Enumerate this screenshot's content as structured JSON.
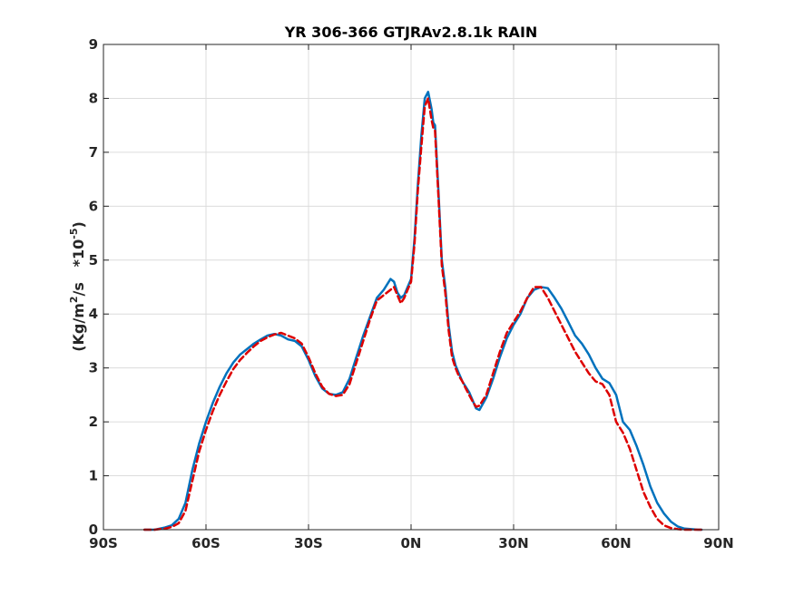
{
  "chart_data": {
    "type": "line",
    "title": "YR 306-366 GTJRAv2.8.1k RAIN",
    "xlabel": "",
    "ylabel": {
      "main": "(Kg/m",
      "sup1": "2",
      "mid": "/s   *10",
      "sup2": "-5",
      "end": ")"
    },
    "xlim": [
      -90,
      90
    ],
    "ylim": [
      0,
      9
    ],
    "grid": true,
    "legend": "none",
    "x_ticks": [
      {
        "value": -90,
        "label": "90S"
      },
      {
        "value": -60,
        "label": "60S"
      },
      {
        "value": -30,
        "label": "30S"
      },
      {
        "value": 0,
        "label": "0N"
      },
      {
        "value": 30,
        "label": "30N"
      },
      {
        "value": 60,
        "label": "60N"
      },
      {
        "value": 90,
        "label": "90N"
      }
    ],
    "y_ticks": [
      {
        "value": 0,
        "label": "0"
      },
      {
        "value": 1,
        "label": "1"
      },
      {
        "value": 2,
        "label": "2"
      },
      {
        "value": 3,
        "label": "3"
      },
      {
        "value": 4,
        "label": "4"
      },
      {
        "value": 5,
        "label": "5"
      },
      {
        "value": 6,
        "label": "6"
      },
      {
        "value": 7,
        "label": "7"
      },
      {
        "value": 8,
        "label": "8"
      },
      {
        "value": 9,
        "label": "9"
      }
    ],
    "series": [
      {
        "color": "#0072BD",
        "style": "solid",
        "x": [
          -78,
          -75,
          -72,
          -70,
          -68,
          -66,
          -64,
          -62,
          -60,
          -58,
          -56,
          -54,
          -52,
          -50,
          -48,
          -46,
          -44,
          -42,
          -40,
          -38,
          -36,
          -34,
          -32,
          -30,
          -28,
          -26,
          -24,
          -22,
          -20,
          -18,
          -16,
          -14,
          -12,
          -10,
          -8,
          -6,
          -5,
          -4,
          -3,
          -2,
          -1,
          0,
          1,
          2,
          3,
          4,
          5,
          6,
          6.5,
          7,
          8,
          9,
          10,
          11,
          12,
          13,
          14,
          15,
          16,
          17,
          18,
          19,
          20,
          22,
          24,
          26,
          28,
          30,
          32,
          34,
          36,
          38,
          40,
          42,
          44,
          46,
          48,
          50,
          52,
          54,
          56,
          58,
          60,
          62,
          64,
          66,
          68,
          70,
          72,
          74,
          76,
          78,
          80,
          82,
          84,
          85
        ],
        "values": [
          0.0,
          0.0,
          0.04,
          0.08,
          0.2,
          0.5,
          1.1,
          1.6,
          2.0,
          2.35,
          2.65,
          2.9,
          3.1,
          3.25,
          3.35,
          3.45,
          3.53,
          3.6,
          3.63,
          3.6,
          3.53,
          3.5,
          3.4,
          3.15,
          2.85,
          2.62,
          2.52,
          2.5,
          2.55,
          2.8,
          3.2,
          3.6,
          3.95,
          4.3,
          4.45,
          4.65,
          4.6,
          4.4,
          4.3,
          4.35,
          4.5,
          4.65,
          5.4,
          6.4,
          7.3,
          8.0,
          8.12,
          7.8,
          7.55,
          7.5,
          6.3,
          5.0,
          4.5,
          3.8,
          3.3,
          3.05,
          2.9,
          2.75,
          2.65,
          2.55,
          2.4,
          2.25,
          2.22,
          2.45,
          2.8,
          3.2,
          3.55,
          3.8,
          4.0,
          4.3,
          4.45,
          4.5,
          4.48,
          4.3,
          4.1,
          3.85,
          3.6,
          3.45,
          3.25,
          3.0,
          2.8,
          2.72,
          2.5,
          2.0,
          1.85,
          1.55,
          1.2,
          0.8,
          0.5,
          0.3,
          0.15,
          0.06,
          0.02,
          0.01,
          0.0,
          0.0
        ]
      },
      {
        "color": "#DD0000",
        "style": "dashed",
        "x": [
          -78,
          -75,
          -72,
          -70,
          -68,
          -66,
          -64,
          -62,
          -60,
          -58,
          -56,
          -54,
          -52,
          -50,
          -48,
          -46,
          -44,
          -42,
          -40,
          -38,
          -36,
          -34,
          -32,
          -30,
          -28,
          -26,
          -24,
          -22,
          -20,
          -18,
          -16,
          -14,
          -12,
          -10,
          -8,
          -6,
          -5,
          -4,
          -3,
          -2,
          -1,
          0,
          1,
          2,
          3,
          4,
          5,
          6,
          6.5,
          7,
          8,
          9,
          10,
          11,
          12,
          13,
          14,
          15,
          16,
          17,
          18,
          19,
          20,
          22,
          24,
          26,
          28,
          30,
          32,
          34,
          36,
          38,
          40,
          42,
          44,
          46,
          48,
          50,
          52,
          54,
          56,
          58,
          60,
          62,
          64,
          66,
          68,
          70,
          72,
          74,
          76,
          78,
          80,
          82,
          84,
          85
        ],
        "values": [
          0.0,
          0.0,
          0.02,
          0.05,
          0.12,
          0.35,
          0.9,
          1.45,
          1.85,
          2.2,
          2.5,
          2.75,
          2.98,
          3.15,
          3.28,
          3.4,
          3.5,
          3.57,
          3.62,
          3.65,
          3.6,
          3.55,
          3.45,
          3.2,
          2.9,
          2.65,
          2.52,
          2.48,
          2.5,
          2.7,
          3.1,
          3.5,
          3.9,
          4.25,
          4.35,
          4.45,
          4.5,
          4.35,
          4.2,
          4.3,
          4.45,
          4.6,
          5.3,
          6.3,
          7.1,
          7.85,
          8.0,
          7.6,
          7.45,
          7.4,
          6.2,
          4.9,
          4.4,
          3.7,
          3.2,
          3.0,
          2.85,
          2.75,
          2.62,
          2.5,
          2.38,
          2.28,
          2.3,
          2.5,
          2.9,
          3.3,
          3.65,
          3.85,
          4.05,
          4.3,
          4.5,
          4.5,
          4.3,
          4.05,
          3.8,
          3.55,
          3.3,
          3.1,
          2.9,
          2.75,
          2.7,
          2.5,
          2.0,
          1.8,
          1.5,
          1.1,
          0.7,
          0.42,
          0.2,
          0.08,
          0.03,
          0.01,
          0.0,
          0.0,
          0.0,
          0.0
        ]
      }
    ]
  }
}
